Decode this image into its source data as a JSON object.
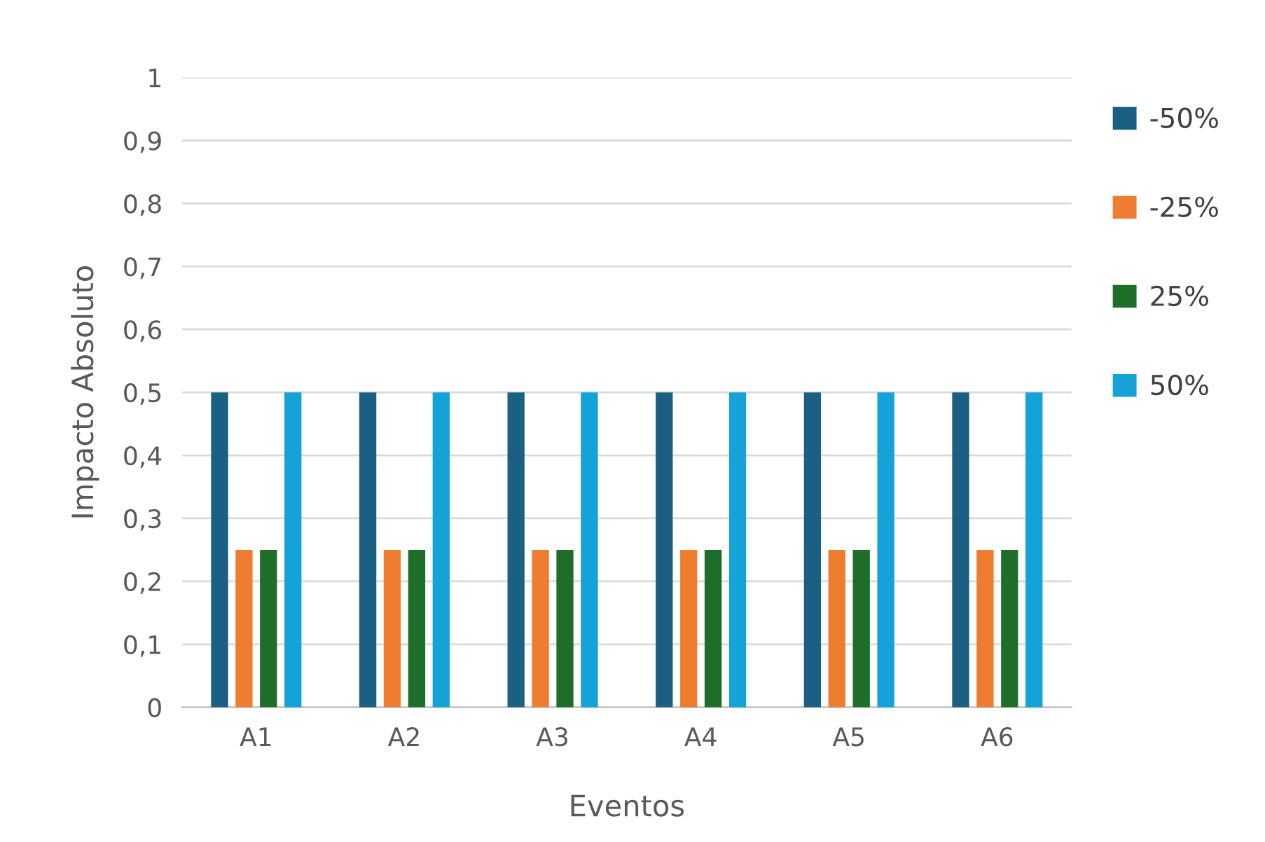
{
  "chart_data": {
    "type": "bar",
    "xlabel": "Eventos",
    "ylabel": "Impacto Absoluto",
    "categories": [
      "A1",
      "A2",
      "A3",
      "A4",
      "A5",
      "A6"
    ],
    "series": [
      {
        "name": "-50%",
        "color": "#1b5f83",
        "values": [
          0.5,
          0.5,
          0.5,
          0.5,
          0.5,
          0.5
        ]
      },
      {
        "name": "-25%",
        "color": "#ee7d31",
        "values": [
          0.25,
          0.25,
          0.25,
          0.25,
          0.25,
          0.25
        ]
      },
      {
        "name": "25%",
        "color": "#1e6e2a",
        "values": [
          0.25,
          0.25,
          0.25,
          0.25,
          0.25,
          0.25
        ]
      },
      {
        "name": "50%",
        "color": "#14a2d8",
        "values": [
          0.5,
          0.5,
          0.5,
          0.5,
          0.5,
          0.5
        ]
      }
    ],
    "ylim": [
      0,
      1
    ],
    "yticks": [
      0,
      {
        "value": 0.1,
        "label": "0,1"
      },
      {
        "value": 0.2,
        "label": "0,2"
      },
      {
        "value": 0.3,
        "label": "0,3"
      },
      {
        "value": 0.4,
        "label": "0,4"
      },
      {
        "value": 0.5,
        "label": "0,5"
      },
      {
        "value": 0.6,
        "label": "0,6"
      },
      {
        "value": 0.7,
        "label": "0,7"
      },
      {
        "value": 0.8,
        "label": "0,8"
      },
      {
        "value": 0.9,
        "label": "0,9"
      },
      1
    ],
    "grid": "y",
    "legend": "right"
  }
}
